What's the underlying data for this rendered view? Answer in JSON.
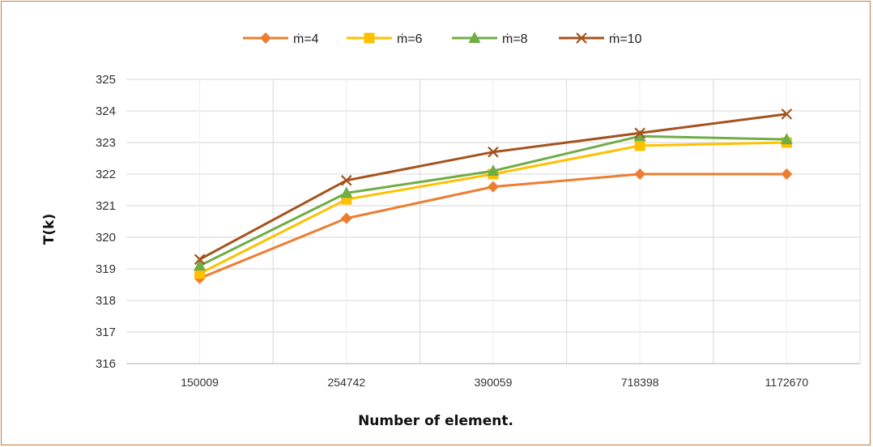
{
  "chart_data": {
    "type": "line",
    "title": "",
    "xlabel": "Number of element.",
    "ylabel": "T(k)",
    "categories": [
      "150009",
      "254742",
      "390059",
      "718398",
      "1172670"
    ],
    "ylim": [
      316,
      325
    ],
    "yticks": [
      316,
      317,
      318,
      319,
      320,
      321,
      322,
      323,
      324,
      325
    ],
    "grid": true,
    "legend_position": "top",
    "series": [
      {
        "name": "ṁ=4",
        "color": "#ED7D31",
        "marker": "diamond",
        "values": [
          318.7,
          320.6,
          321.6,
          322.0,
          322.0
        ]
      },
      {
        "name": "ṁ=6",
        "color": "#FFC000",
        "marker": "square",
        "values": [
          318.85,
          321.2,
          322.0,
          322.9,
          323.0
        ]
      },
      {
        "name": "ṁ=8",
        "color": "#70AD47",
        "marker": "triangle",
        "values": [
          319.1,
          321.4,
          322.1,
          323.2,
          323.1
        ]
      },
      {
        "name": "ṁ=10",
        "color": "#A5521D",
        "marker": "x",
        "values": [
          319.3,
          321.8,
          322.7,
          323.3,
          323.9
        ]
      }
    ]
  }
}
